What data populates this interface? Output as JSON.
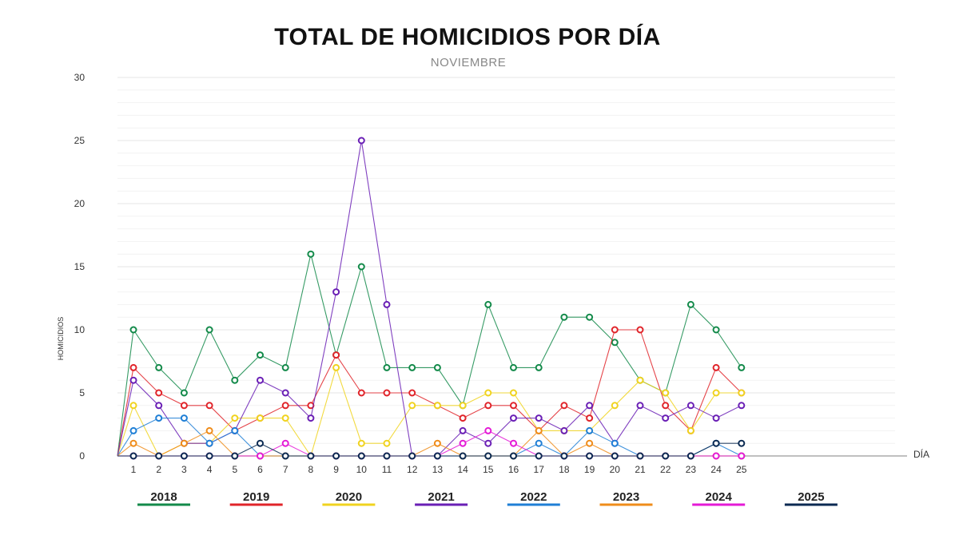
{
  "chart_data": {
    "type": "line",
    "title": "TOTAL DE HOMICIDIOS POR DÍA",
    "subtitle": "NOVIEMBRE",
    "xlabel": "DÍA",
    "ylabel": "HOMICIDIOS",
    "ylim": [
      0,
      30
    ],
    "yticks": [
      0,
      5,
      10,
      15,
      20,
      25,
      30
    ],
    "grid": true,
    "legend_position": "bottom",
    "x": [
      1,
      2,
      3,
      4,
      5,
      6,
      7,
      8,
      9,
      10,
      11,
      12,
      13,
      14,
      15,
      16,
      17,
      18,
      19,
      20,
      21,
      22,
      23,
      24,
      25
    ],
    "series": [
      {
        "name": "2018",
        "color": "#138a4a",
        "values": [
          10,
          7,
          5,
          10,
          6,
          8,
          7,
          16,
          8,
          15,
          7,
          7,
          7,
          4,
          12,
          7,
          7,
          11,
          11,
          9,
          6,
          5,
          12,
          10,
          7
        ]
      },
      {
        "name": "2019",
        "color": "#e0242a",
        "values": [
          7,
          5,
          4,
          4,
          2,
          3,
          4,
          4,
          8,
          5,
          5,
          5,
          4,
          3,
          4,
          4,
          2,
          4,
          3,
          10,
          10,
          4,
          2,
          7,
          5
        ]
      },
      {
        "name": "2020",
        "color": "#f0d31f",
        "values": [
          4,
          0,
          1,
          1,
          3,
          3,
          3,
          0,
          7,
          1,
          1,
          4,
          4,
          4,
          5,
          5,
          2,
          2,
          2,
          4,
          6,
          5,
          2,
          5,
          5
        ]
      },
      {
        "name": "2021",
        "color": "#6a1fb5",
        "values": [
          6,
          4,
          1,
          1,
          2,
          6,
          5,
          3,
          13,
          25,
          12,
          0,
          0,
          2,
          1,
          3,
          3,
          2,
          4,
          1,
          4,
          3,
          4,
          3,
          4
        ]
      },
      {
        "name": "2022",
        "color": "#1f7fd6",
        "values": [
          2,
          3,
          3,
          1,
          2,
          0,
          0,
          0,
          0,
          0,
          0,
          0,
          0,
          0,
          0,
          0,
          1,
          0,
          2,
          1,
          0,
          0,
          0,
          1,
          0
        ]
      },
      {
        "name": "2023",
        "color": "#ef8c1a",
        "values": [
          1,
          0,
          1,
          2,
          0,
          0,
          0,
          0,
          0,
          0,
          0,
          0,
          1,
          0,
          0,
          0,
          2,
          0,
          1,
          0,
          0,
          0,
          0,
          0,
          0
        ]
      },
      {
        "name": "2024",
        "color": "#e41ad6",
        "values": [
          0,
          0,
          0,
          0,
          0,
          0,
          1,
          0,
          0,
          0,
          0,
          0,
          0,
          1,
          2,
          1,
          0,
          0,
          0,
          0,
          0,
          0,
          0,
          0,
          0
        ]
      },
      {
        "name": "2025",
        "color": "#0b2a52",
        "values": [
          0,
          0,
          0,
          0,
          0,
          1,
          0,
          0,
          0,
          0,
          0,
          0,
          0,
          0,
          0,
          0,
          0,
          0,
          0,
          0,
          0,
          0,
          0,
          1,
          1
        ]
      }
    ]
  }
}
